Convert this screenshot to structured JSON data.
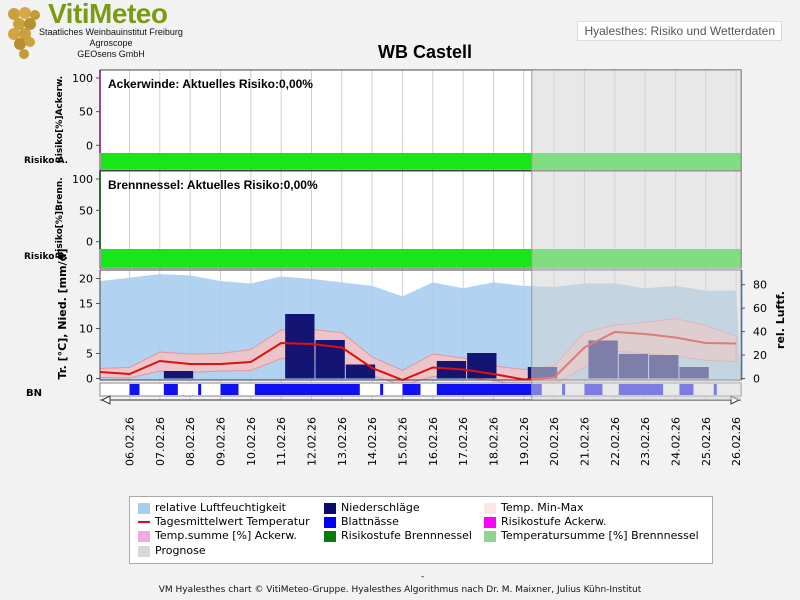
{
  "header": {
    "logo_text": "VitiMeteo",
    "logo_lines": [
      "Staatliches Weinbauinstitut Freiburg",
      "Agroscope",
      "GEOsens GmbH"
    ],
    "top_label": "Hyalesthes: Risiko und Wetterdaten",
    "title": "WB Castell"
  },
  "footer": "VM Hyalesthes chart © VitiMeteo-Gruppe. Hyalesthes Algorithmus nach Dr. M. Maixner, Julius Kühn-Institut",
  "legend": [
    {
      "label": "relative Luftfeuchtigkeit",
      "color": "#a9cdee",
      "kind": "box"
    },
    {
      "label": "Niederschläge",
      "color": "#0b0b6e",
      "kind": "box"
    },
    {
      "label": "Temp. Min-Max",
      "color": "#fde6e6",
      "kind": "box"
    },
    {
      "label": "Tagesmittelwert Temperatur",
      "color": "#e01010",
      "kind": "line"
    },
    {
      "label": "Blattnässe",
      "color": "#0000ff",
      "kind": "box"
    },
    {
      "label": "Risikostufe Ackerw.",
      "color": "#ff00ff",
      "kind": "box"
    },
    {
      "label": "Temp.summe [%] Ackerw.",
      "color": "#f3a6e6",
      "kind": "box"
    },
    {
      "label": "Risikostufe Brennnessel",
      "color": "#0a7a0a",
      "kind": "box"
    },
    {
      "label": "Temperatursumme [%] Brennnessel",
      "color": "#8fd48f",
      "kind": "box"
    },
    {
      "label": "Prognose",
      "color": "#d7d7d7",
      "kind": "box"
    }
  ],
  "chart_data": {
    "type": "mixed",
    "x_dates": [
      "06.02.26",
      "07.02.26",
      "08.02.26",
      "09.02.26",
      "10.02.26",
      "11.02.26",
      "12.02.26",
      "13.02.26",
      "14.02.26",
      "15.02.26",
      "16.02.26",
      "17.02.26",
      "18.02.26",
      "19.02.26",
      "20.02.26",
      "21.02.26",
      "22.02.26",
      "23.02.26",
      "24.02.26",
      "25.02.26",
      "26.02.26"
    ],
    "prognosis_from": "19.02.26",
    "panels": [
      {
        "name": "ackerwinde",
        "title": "Ackerwinde: Aktuelles Risiko:0,00%",
        "ylabel": "Risiko[%]Ackerw.",
        "row_label": "Risiko A.",
        "yticks": [
          0,
          50,
          100
        ],
        "ylim": [
          -10,
          100
        ],
        "risk_level_color": "#19e619",
        "temp_sum": []
      },
      {
        "name": "brennnessel",
        "title": "Brennnessel: Aktuelles Risiko:0,00%",
        "ylabel": "Risiko[%]Brenn.",
        "row_label": "Risiko B.",
        "yticks": [
          0,
          50,
          100
        ],
        "ylim": [
          -10,
          100
        ],
        "risk_level_color": "#19e619",
        "temp_sum": []
      }
    ],
    "weather": {
      "ylabel_left": "Tr. [°C], Nied. [mm/d]",
      "ylabel_right": "rel. Luftf.",
      "bn_label": "BN",
      "yticks_left": [
        0,
        5,
        10,
        15,
        20
      ],
      "ylim_left": [
        -2,
        22
      ],
      "yticks_right": [
        0,
        20,
        40,
        60,
        80
      ],
      "ylim_right": [
        -6,
        90
      ],
      "humidity": [
        {
          "date": "05.02.26",
          "v": 83
        },
        {
          "date": "06.02.26",
          "v": 86
        },
        {
          "date": "07.02.26",
          "v": 89
        },
        {
          "date": "08.02.26",
          "v": 88
        },
        {
          "date": "09.02.26",
          "v": 83
        },
        {
          "date": "10.02.26",
          "v": 81
        },
        {
          "date": "11.02.26",
          "v": 87
        },
        {
          "date": "12.02.26",
          "v": 85
        },
        {
          "date": "13.02.26",
          "v": 82
        },
        {
          "date": "14.02.26",
          "v": 79
        },
        {
          "date": "15.02.26",
          "v": 70
        },
        {
          "date": "16.02.26",
          "v": 82
        },
        {
          "date": "17.02.26",
          "v": 77
        },
        {
          "date": "18.02.26",
          "v": 82
        },
        {
          "date": "19.02.26",
          "v": 79
        },
        {
          "date": "20.02.26",
          "v": 78
        },
        {
          "date": "21.02.26",
          "v": 81
        },
        {
          "date": "22.02.26",
          "v": 81
        },
        {
          "date": "23.02.26",
          "v": 77
        },
        {
          "date": "24.02.26",
          "v": 79
        },
        {
          "date": "25.02.26",
          "v": 75
        },
        {
          "date": "26.02.26",
          "v": 75
        }
      ],
      "precipitation": [
        {
          "date": "07.02.26",
          "mm": 1.5
        },
        {
          "date": "11.02.26",
          "mm": 12.9
        },
        {
          "date": "12.02.26",
          "mm": 7.7
        },
        {
          "date": "13.02.26",
          "mm": 2.8
        },
        {
          "date": "16.02.26",
          "mm": 3.5
        },
        {
          "date": "17.02.26",
          "mm": 5.1
        },
        {
          "date": "19.02.26",
          "mm": 2.3
        },
        {
          "date": "21.02.26",
          "mm": 7.6
        },
        {
          "date": "22.02.26",
          "mm": 4.9
        },
        {
          "date": "23.02.26",
          "mm": 4.7
        },
        {
          "date": "24.02.26",
          "mm": 2.3
        }
      ],
      "temp_mean": [
        {
          "date": "05.02.26",
          "t": 1.3
        },
        {
          "date": "06.02.26",
          "t": 0.9
        },
        {
          "date": "07.02.26",
          "t": 3.5
        },
        {
          "date": "08.02.26",
          "t": 2.9
        },
        {
          "date": "09.02.26",
          "t": 2.9
        },
        {
          "date": "10.02.26",
          "t": 3.3
        },
        {
          "date": "11.02.26",
          "t": 7.1
        },
        {
          "date": "12.02.26",
          "t": 6.9
        },
        {
          "date": "13.02.26",
          "t": 6.2
        },
        {
          "date": "14.02.26",
          "t": 2.1
        },
        {
          "date": "15.02.26",
          "t": -0.3
        },
        {
          "date": "16.02.26",
          "t": 2.2
        },
        {
          "date": "17.02.26",
          "t": 1.8
        },
        {
          "date": "18.02.26",
          "t": 0.9
        },
        {
          "date": "19.02.26",
          "t": -0.2
        },
        {
          "date": "20.02.26",
          "t": 0.2
        },
        {
          "date": "21.02.26",
          "t": 6.2
        },
        {
          "date": "22.02.26",
          "t": 9.3
        },
        {
          "date": "23.02.26",
          "t": 8.9
        },
        {
          "date": "24.02.26",
          "t": 8.2
        },
        {
          "date": "25.02.26",
          "t": 7.1
        },
        {
          "date": "26.02.26",
          "t": 7.0
        }
      ],
      "temp_min_max": [
        {
          "date": "05.02.26",
          "min": 0.2,
          "max": 2.0
        },
        {
          "date": "06.02.26",
          "min": 0.1,
          "max": 2.2
        },
        {
          "date": "07.02.26",
          "min": 1.5,
          "max": 5.3
        },
        {
          "date": "08.02.26",
          "min": 1.2,
          "max": 4.9
        },
        {
          "date": "09.02.26",
          "min": 1.5,
          "max": 5.0
        },
        {
          "date": "10.02.26",
          "min": 1.6,
          "max": 5.8
        },
        {
          "date": "11.02.26",
          "min": 4.0,
          "max": 9.7
        },
        {
          "date": "12.02.26",
          "min": 3.6,
          "max": 9.8
        },
        {
          "date": "13.02.26",
          "min": 2.5,
          "max": 9.2
        },
        {
          "date": "14.02.26",
          "min": 0.6,
          "max": 4.3
        },
        {
          "date": "15.02.26",
          "min": -1.4,
          "max": 1.6
        },
        {
          "date": "16.02.26",
          "min": 0.4,
          "max": 4.9
        },
        {
          "date": "17.02.26",
          "min": 0.3,
          "max": 4.1
        },
        {
          "date": "18.02.26",
          "min": -0.4,
          "max": 2.5
        },
        {
          "date": "19.02.26",
          "min": -1.5,
          "max": 1.8
        },
        {
          "date": "20.02.26",
          "min": -1.2,
          "max": 2.5
        },
        {
          "date": "21.02.26",
          "min": 2.2,
          "max": 9.2
        },
        {
          "date": "22.02.26",
          "min": 5.5,
          "max": 10.7
        },
        {
          "date": "23.02.26",
          "min": 5.0,
          "max": 11.2
        },
        {
          "date": "24.02.26",
          "min": 4.5,
          "max": 12.0
        },
        {
          "date": "25.02.26",
          "min": 3.6,
          "max": 10.6
        },
        {
          "date": "26.02.26",
          "min": 3.4,
          "max": 8.5
        }
      ],
      "leaf_wetness": [
        {
          "from": "06.02.26",
          "to": "06.02.26"
        },
        {
          "from": "07.02.26",
          "to": "07.02.26"
        },
        {
          "from": "08.02.26",
          "to": "08.02.26"
        },
        {
          "from": "09.02.26",
          "to": "09.02.26"
        },
        {
          "from": "10.02.26",
          "to": "11.02.26"
        },
        {
          "from": "11.02.26",
          "to": "12.02.26"
        },
        {
          "from": "12.02.26",
          "to": "13.02.26"
        },
        {
          "from": "13.02.26",
          "to": "13.02.26"
        },
        {
          "from": "14.02.26",
          "to": "14.02.26"
        },
        {
          "from": "15.02.26",
          "to": "15.02.26"
        },
        {
          "from": "16.02.26",
          "to": "17.02.26"
        },
        {
          "from": "17.02.26",
          "to": "18.02.26"
        },
        {
          "from": "18.02.26",
          "to": "18.02.26"
        },
        {
          "from": "18.02.26",
          "to": "19.02.26"
        },
        {
          "from": "20.02.26",
          "to": "20.02.26"
        },
        {
          "from": "21.02.26",
          "to": "21.02.26"
        },
        {
          "from": "22.02.26",
          "to": "22.02.26"
        },
        {
          "from": "22.02.26",
          "to": "23.02.26"
        },
        {
          "from": "23.02.26",
          "to": "23.02.26"
        },
        {
          "from": "24.02.26",
          "to": "24.02.26"
        },
        {
          "from": "25.02.26",
          "to": "25.02.26"
        }
      ]
    },
    "colors": {
      "humidity": "#a9cdee",
      "precip": "#0b0b6e",
      "temp_band": "#f6c3c3",
      "temp_line": "#e01010",
      "leaf_wetness": "#1010f0",
      "prognosis": "#d6d6d6",
      "grid": "#d0d0d0"
    }
  }
}
